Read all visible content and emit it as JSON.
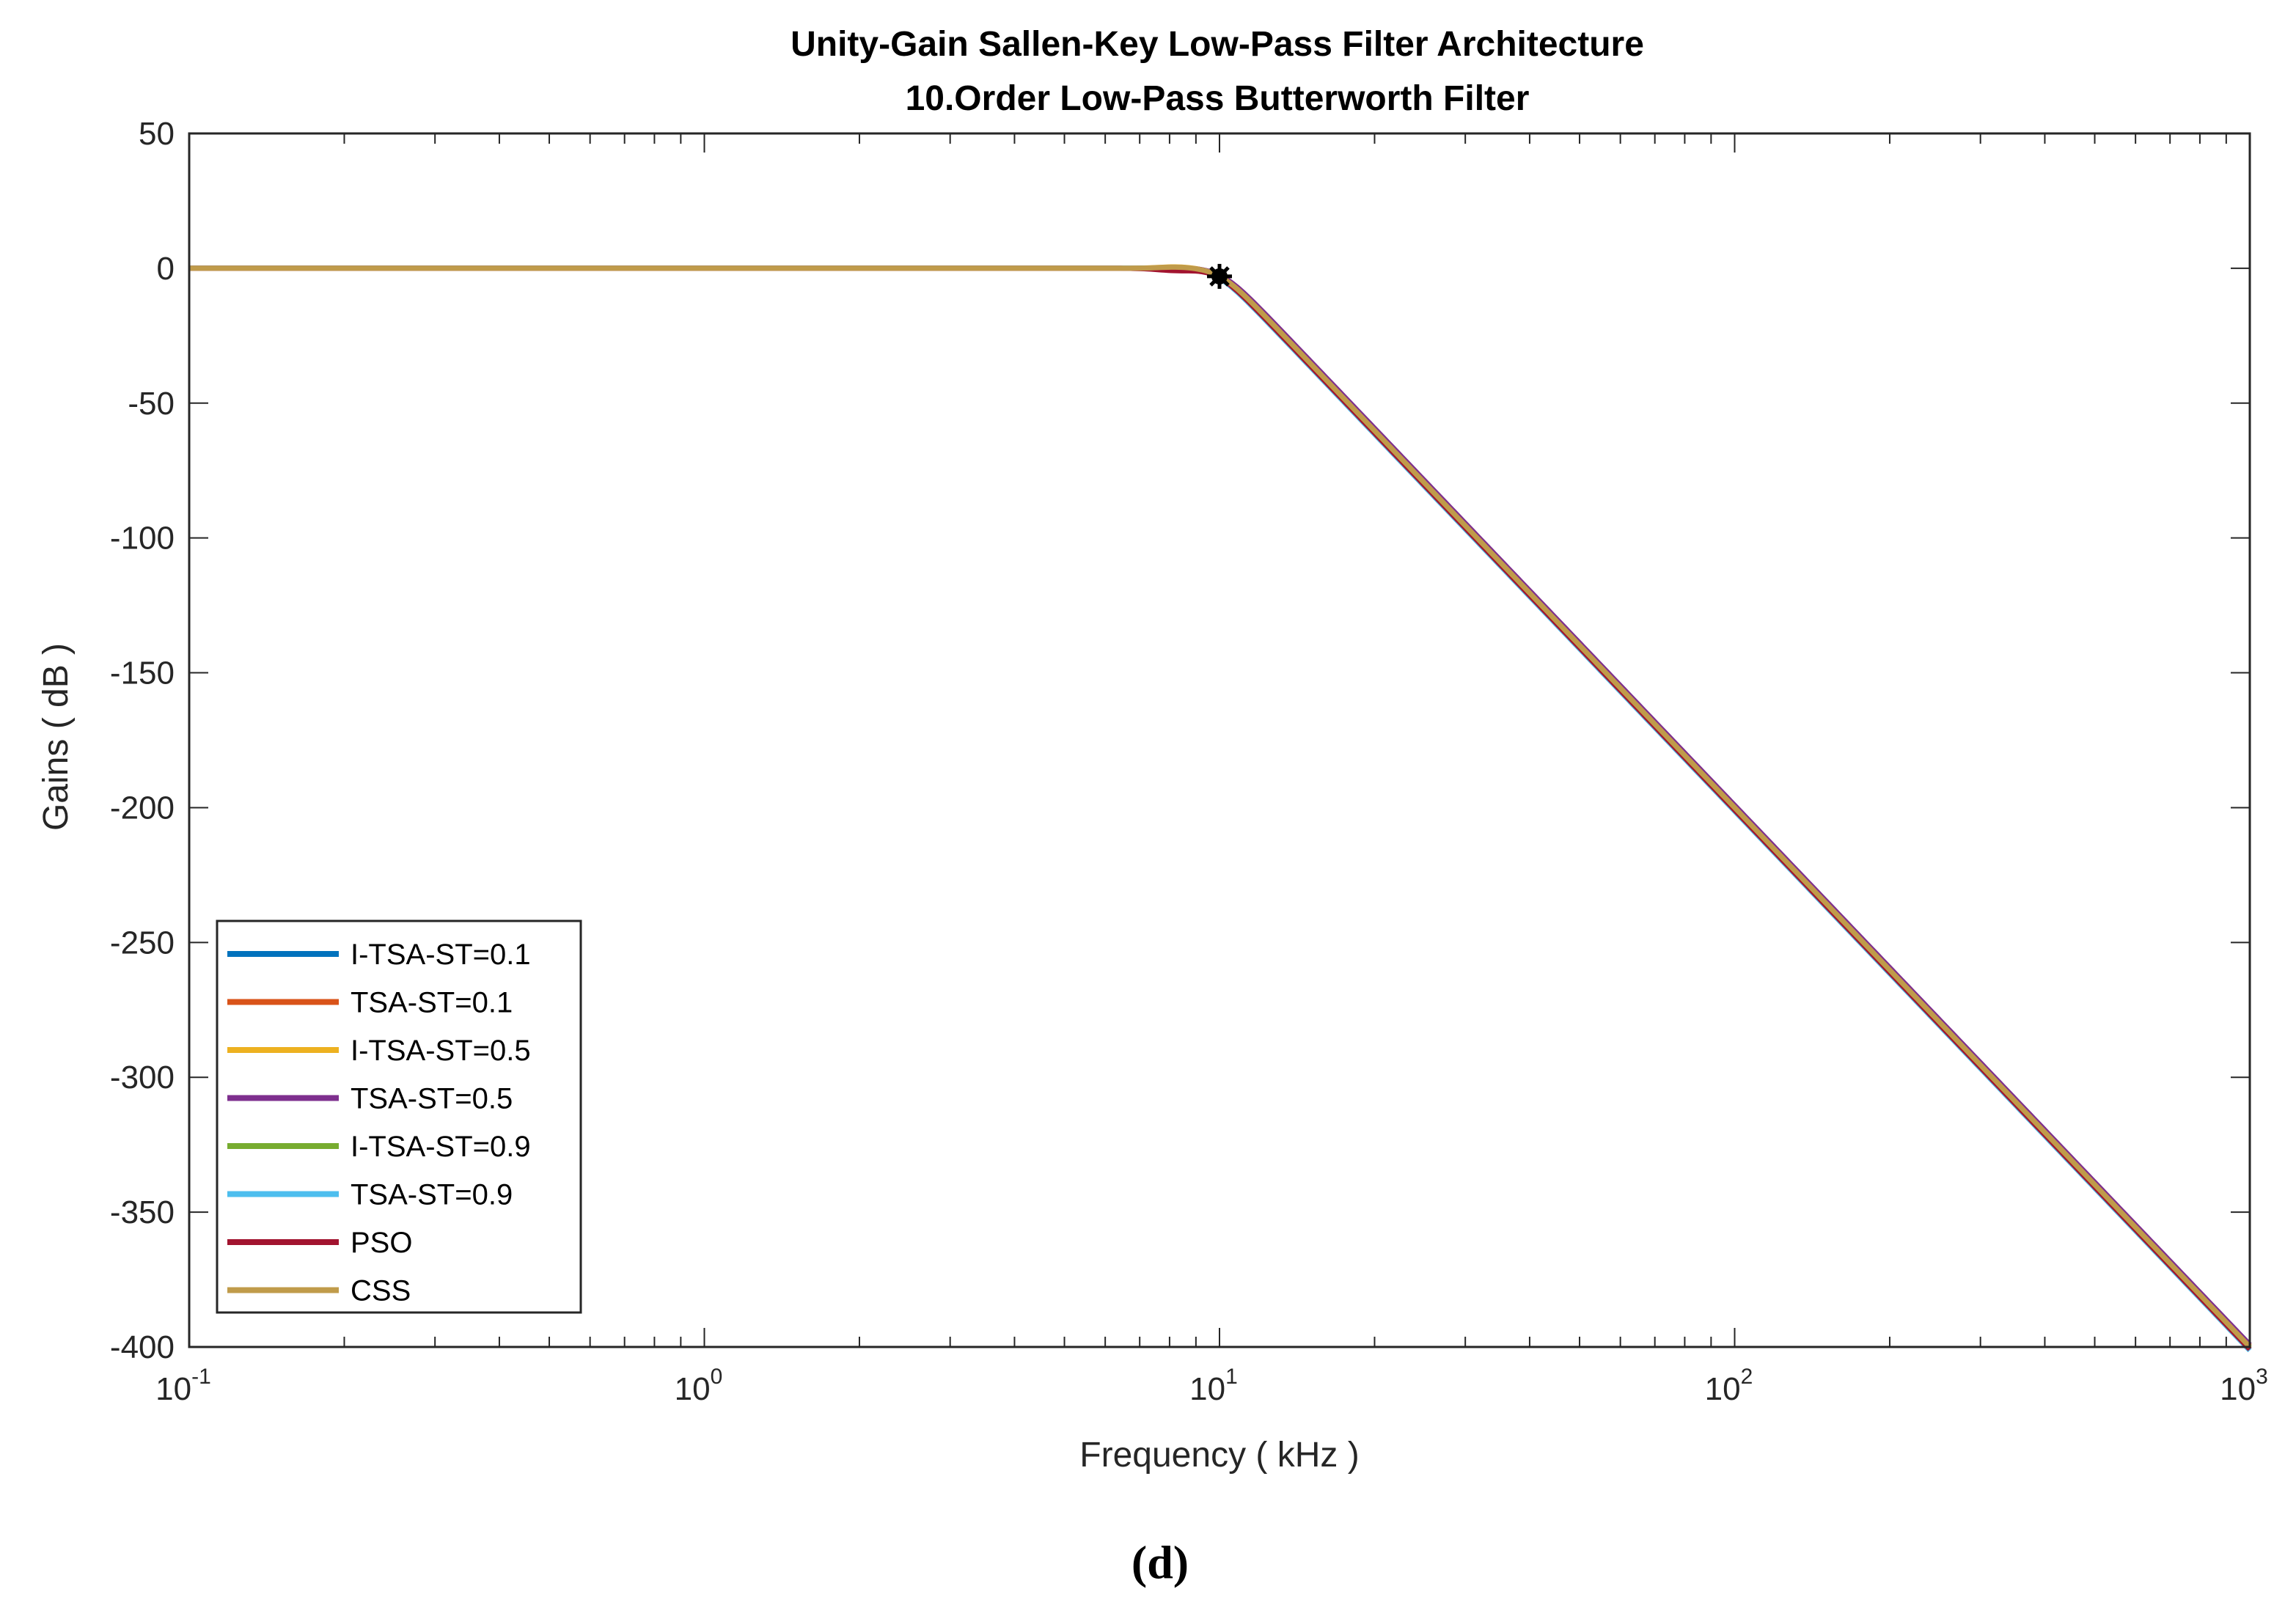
{
  "chart_data": {
    "type": "line",
    "title_lines": [
      "Unity-Gain Sallen-Key Low-Pass Filter Architecture",
      "10.Order Low-Pass Butterworth Filter"
    ],
    "xlabel": "Frequency ( kHz )",
    "ylabel": "Gains ( dB )",
    "x_scale": "log",
    "xlim": [
      0.1,
      1000
    ],
    "ylim": [
      -400,
      50
    ],
    "x_ticks": [
      {
        "base": "10",
        "exp": "-1",
        "value": 0.1
      },
      {
        "base": "10",
        "exp": "0",
        "value": 1
      },
      {
        "base": "10",
        "exp": "1",
        "value": 10
      },
      {
        "base": "10",
        "exp": "2",
        "value": 100
      },
      {
        "base": "10",
        "exp": "3",
        "value": 1000
      }
    ],
    "y_ticks": [
      {
        "label": "50",
        "value": 50
      },
      {
        "label": "0",
        "value": 0
      },
      {
        "label": "-50",
        "value": -50
      },
      {
        "label": "-100",
        "value": -100
      },
      {
        "label": "-150",
        "value": -150
      },
      {
        "label": "-200",
        "value": -200
      },
      {
        "label": "-250",
        "value": -250
      },
      {
        "label": "-300",
        "value": -300
      },
      {
        "label": "-350",
        "value": -350
      },
      {
        "label": "-400",
        "value": -400
      }
    ],
    "filter_order": 10,
    "cutoff_khz": 10,
    "cutoff_marker": {
      "x": 10,
      "y": -3
    },
    "series": [
      {
        "name": "I-TSA-ST=0.1",
        "color": "#0072BD",
        "fc": 10.0,
        "peak_db": 0.0
      },
      {
        "name": "TSA-ST=0.1",
        "color": "#D95319",
        "fc": 10.05,
        "peak_db": 0.4
      },
      {
        "name": "I-TSA-ST=0.5",
        "color": "#EDB120",
        "fc": 10.0,
        "peak_db": 0.6
      },
      {
        "name": "TSA-ST=0.5",
        "color": "#7E2F8E",
        "fc": 10.1,
        "peak_db": 0.3
      },
      {
        "name": "I-TSA-ST=0.9",
        "color": "#77AC30",
        "fc": 9.95,
        "peak_db": 0.2
      },
      {
        "name": "TSA-ST=0.9",
        "color": "#4DBEEE",
        "fc": 9.85,
        "peak_db": 0.1
      },
      {
        "name": "PSO",
        "color": "#A2142F",
        "fc": 9.9,
        "peak_db": -0.8
      },
      {
        "name": "CSS",
        "color": "#C09B4A",
        "fc": 10.0,
        "peak_db": 0.5
      }
    ],
    "legend_position": "bottom-left"
  },
  "caption": "(d)"
}
